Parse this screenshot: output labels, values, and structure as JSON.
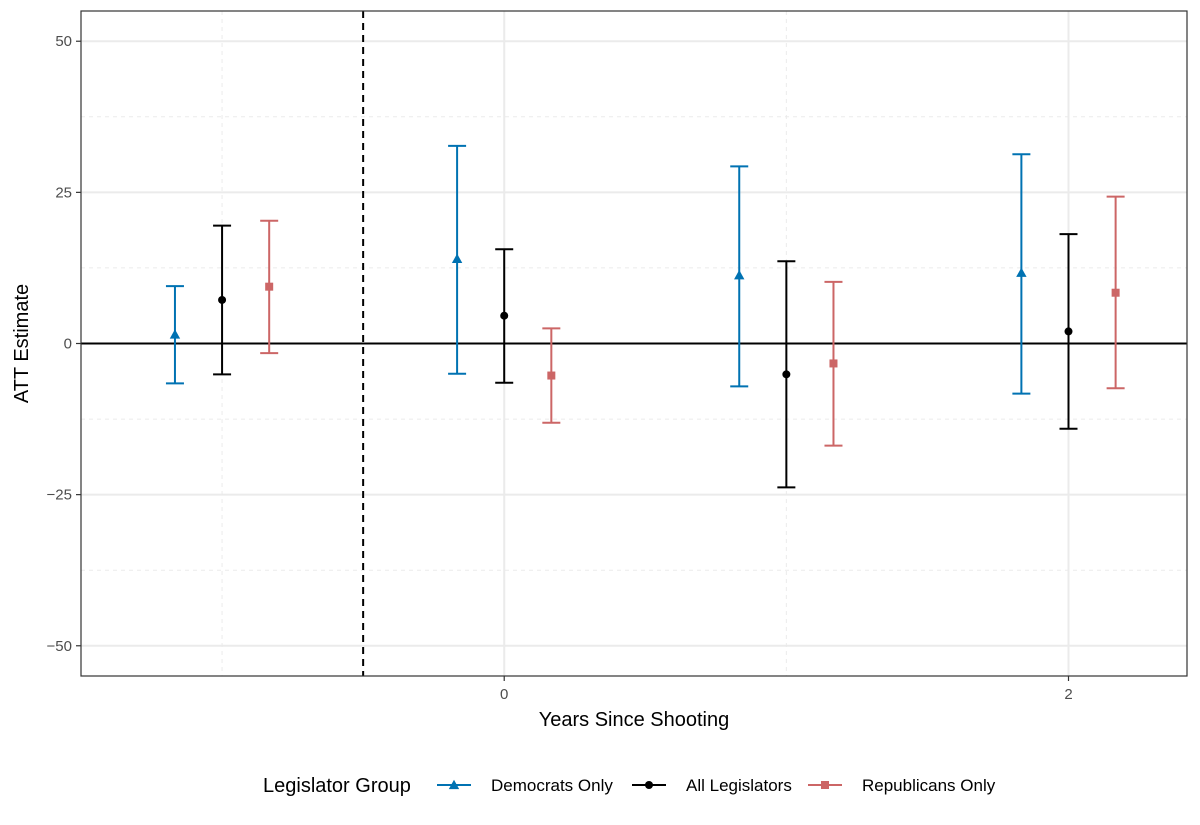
{
  "chart_data": {
    "type": "errorbar",
    "title": "",
    "xlabel": "Years Since Shooting",
    "ylabel": "ATT Estimate",
    "x_ticks": [
      0,
      2
    ],
    "y_ticks": [
      -50,
      -25,
      0,
      25,
      50
    ],
    "x_tick_labels": [
      "0",
      "2"
    ],
    "y_tick_labels": [
      "−50",
      "−25",
      "0",
      "25",
      "50"
    ],
    "xlim": [
      -1.5,
      2.42
    ],
    "ylim": [
      -55,
      55
    ],
    "periods": [
      -1,
      0,
      1,
      2
    ],
    "dodge": 0.167,
    "reference_vline": -0.5,
    "reference_hline": 0,
    "grid": true,
    "legend": {
      "title": "Legislator Group",
      "position": "bottom"
    },
    "series": [
      {
        "name": "Democrats Only",
        "color": "#0072B2",
        "shape": "triangle",
        "estimates": [
          1.5,
          14,
          11.3,
          11.7
        ],
        "lower": [
          -6.6,
          -5,
          -7.1,
          -8.3
        ],
        "upper": [
          9.5,
          32.7,
          29.3,
          31.3
        ]
      },
      {
        "name": "All Legislators",
        "color": "#000000",
        "shape": "circle",
        "estimates": [
          7.2,
          4.6,
          -5.1,
          2
        ],
        "lower": [
          -5.1,
          -6.5,
          -23.8,
          -14.1
        ],
        "upper": [
          19.5,
          15.6,
          13.6,
          18.1
        ]
      },
      {
        "name": "Republicans Only",
        "color": "#CC6666",
        "shape": "square",
        "estimates": [
          9.4,
          -5.3,
          -3.3,
          8.4
        ],
        "lower": [
          -1.6,
          -13.1,
          -16.9,
          -7.4
        ],
        "upper": [
          20.3,
          2.5,
          10.2,
          24.3
        ]
      }
    ]
  }
}
